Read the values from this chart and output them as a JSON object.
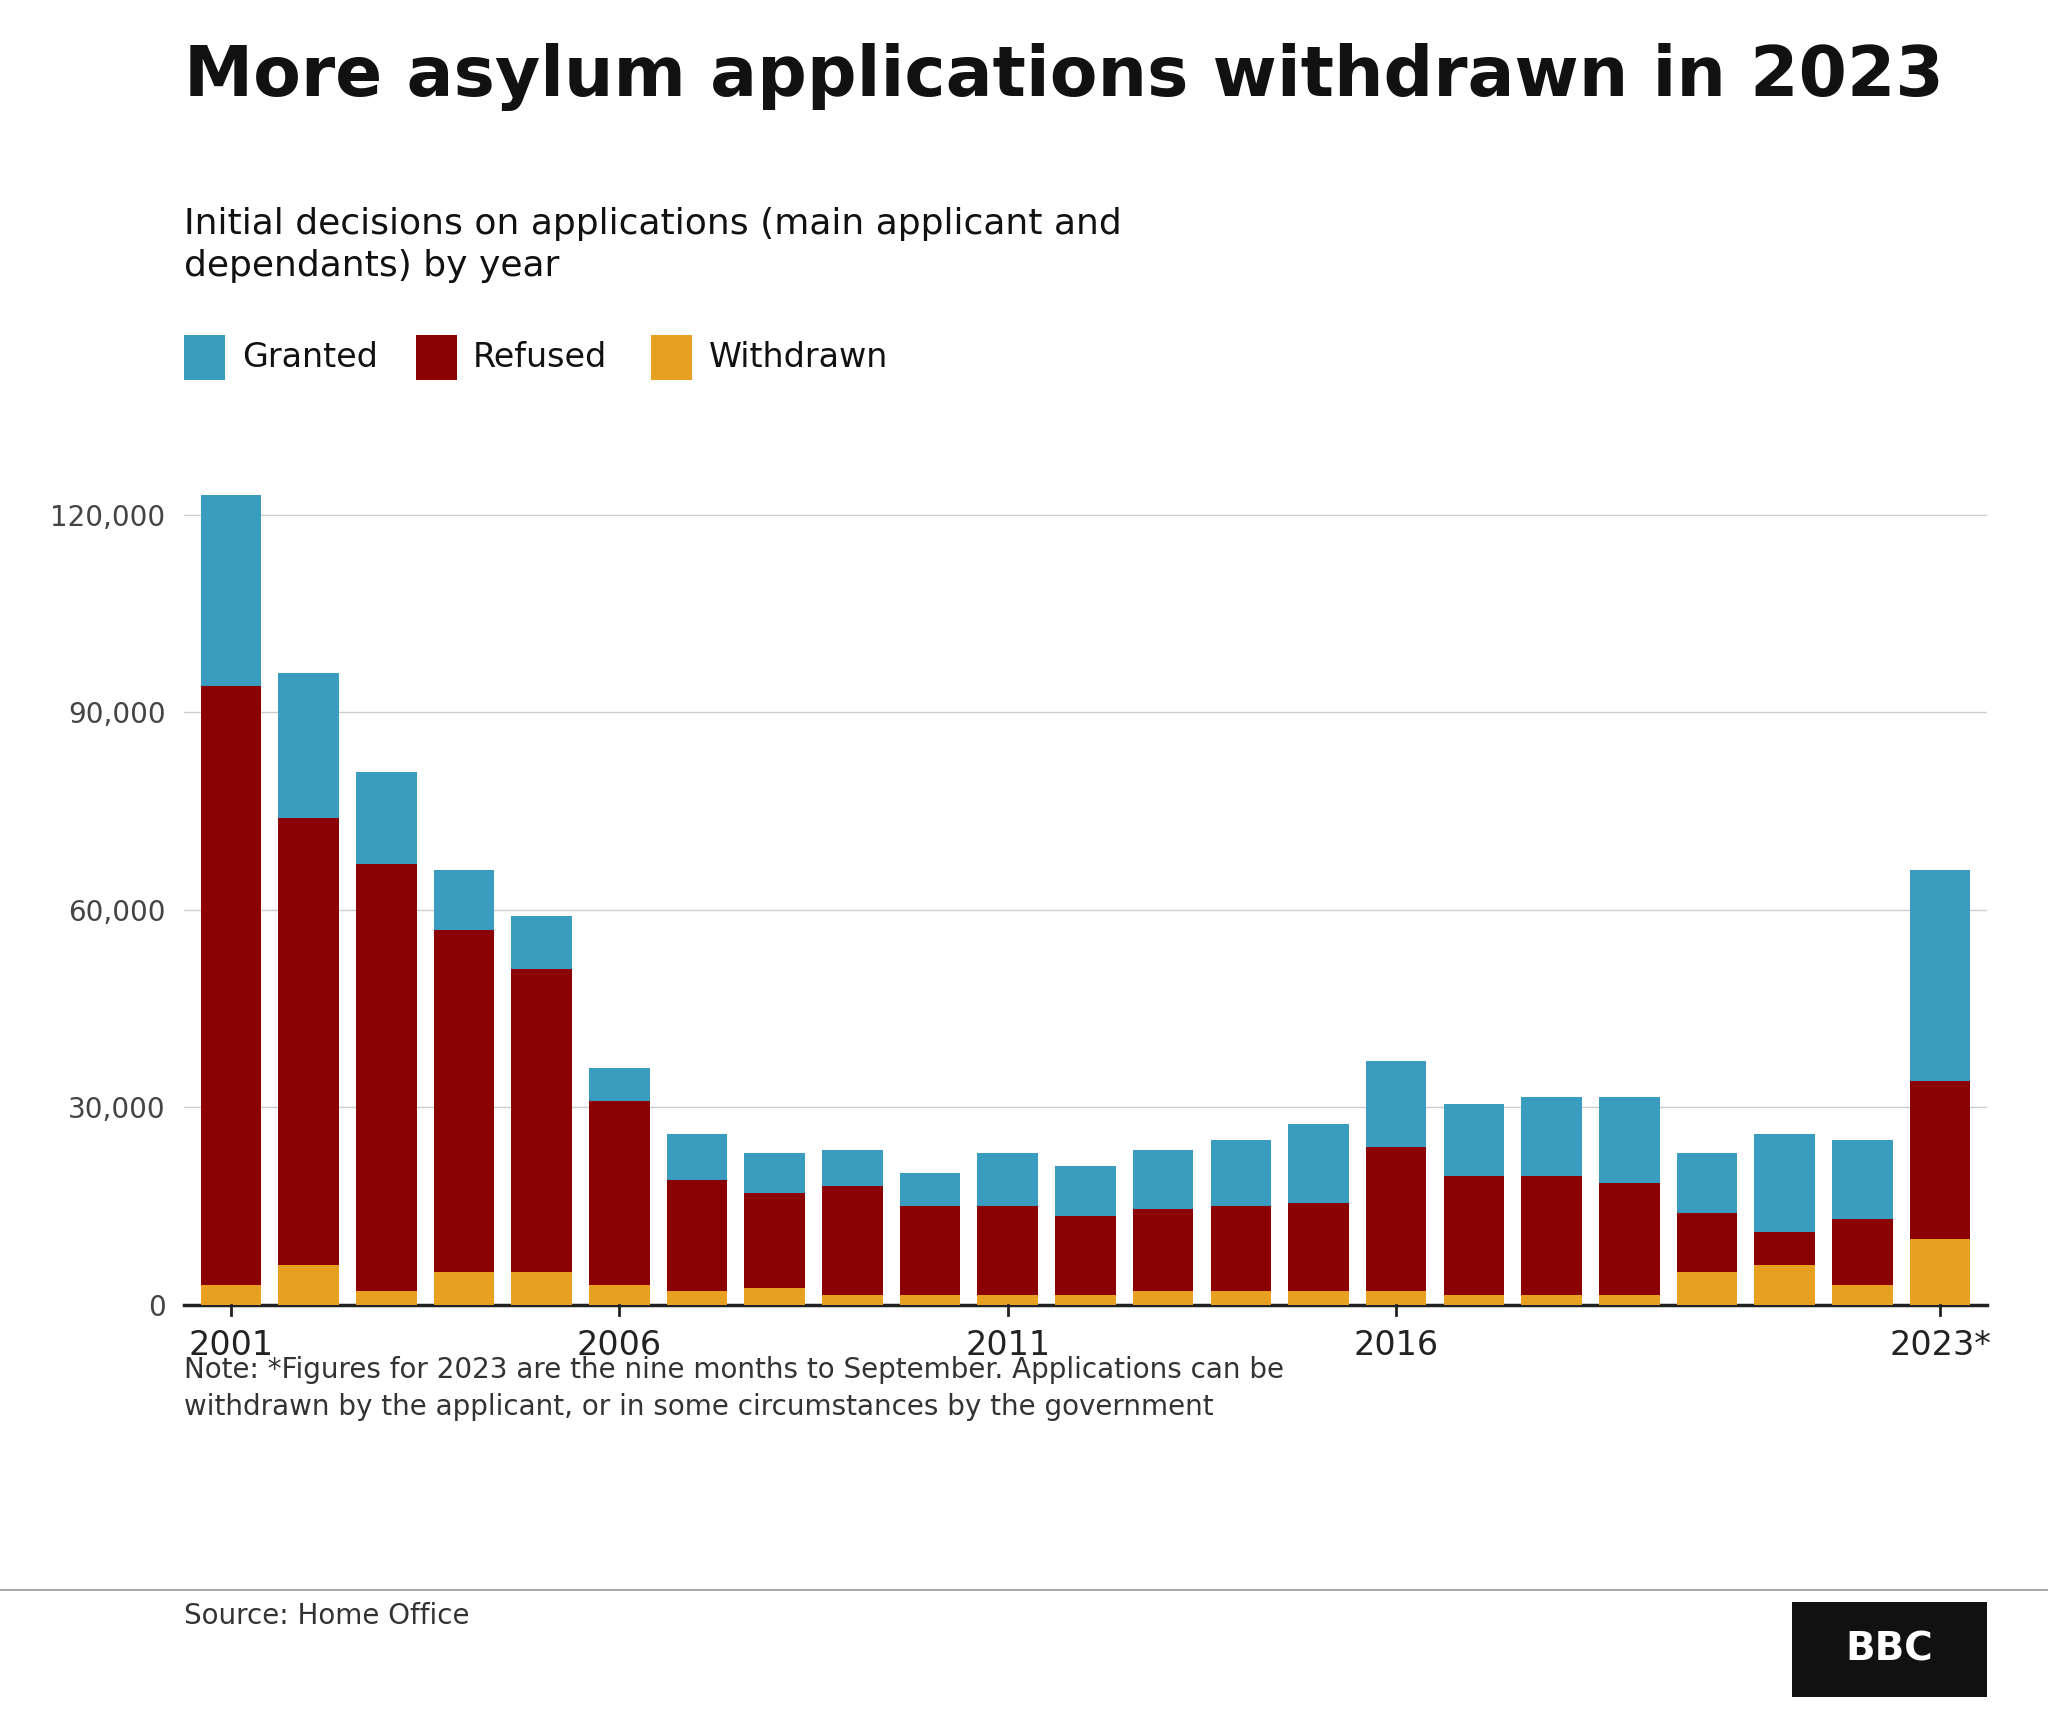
{
  "title": "More asylum applications withdrawn in 2023",
  "subtitle": "Initial decisions on applications (main applicant and\ndependants) by year",
  "note": "Note: *Figures for 2023 are the nine months to September. Applications can be\nwithdrawn by the applicant, or in some circumstances by the government",
  "source": "Source: Home Office",
  "years": [
    2001,
    2002,
    2003,
    2004,
    2005,
    2006,
    2007,
    2008,
    2009,
    2010,
    2011,
    2012,
    2013,
    2014,
    2015,
    2016,
    2017,
    2018,
    2019,
    2020,
    2021,
    2022,
    2023
  ],
  "granted": [
    29000,
    22000,
    14000,
    9000,
    8000,
    5000,
    7000,
    6000,
    5500,
    5000,
    8000,
    7500,
    9000,
    10000,
    12000,
    13000,
    11000,
    12000,
    13000,
    9000,
    15000,
    12000,
    32000
  ],
  "refused": [
    91000,
    68000,
    65000,
    52000,
    46000,
    28000,
    17000,
    14500,
    16500,
    13500,
    13500,
    12000,
    12500,
    13000,
    13500,
    22000,
    18000,
    18000,
    17000,
    9000,
    5000,
    10000,
    24000
  ],
  "withdrawn": [
    3000,
    6000,
    2000,
    5000,
    5000,
    3000,
    2000,
    2500,
    1500,
    1500,
    1500,
    1500,
    2000,
    2000,
    2000,
    2000,
    1500,
    1500,
    1500,
    5000,
    6000,
    3000,
    10000
  ],
  "color_granted": "#3a9dbf",
  "color_refused": "#8b0000",
  "color_withdrawn": "#e8a020",
  "background_color": "#ffffff",
  "ylim": [
    0,
    130000
  ],
  "yticks": [
    0,
    30000,
    60000,
    90000,
    120000
  ],
  "xtick_years": [
    2001,
    2006,
    2011,
    2016,
    2023
  ]
}
